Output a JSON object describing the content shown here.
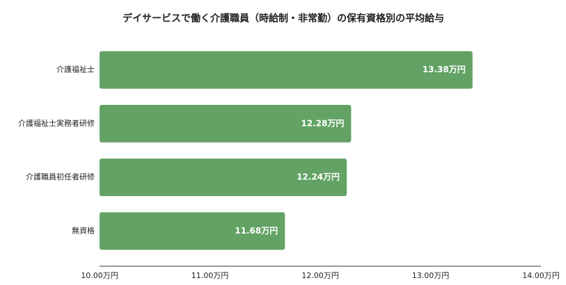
{
  "chart_data": {
    "type": "bar",
    "orientation": "horizontal",
    "title": "デイサービスで働く介護職員（時給制・非常勤）の保有資格別の平均給与",
    "categories": [
      "介護福祉士",
      "介護福祉士実務者研修",
      "介護職員初任者研修",
      "無資格"
    ],
    "values": [
      13.38,
      12.28,
      12.24,
      11.68
    ],
    "value_labels": [
      "13.38万円",
      "12.28万円",
      "12.24万円",
      "11.68万円"
    ],
    "color": "#62a264",
    "xlim": [
      10,
      14
    ],
    "xticks": [
      {
        "value": 10,
        "label": "10.00万円"
      },
      {
        "value": 11,
        "label": "11.00万円"
      },
      {
        "value": 12,
        "label": "12.00万円"
      },
      {
        "value": 13,
        "label": "13.00万円"
      },
      {
        "value": 14,
        "label": "14.00万円"
      }
    ],
    "grid": false
  }
}
